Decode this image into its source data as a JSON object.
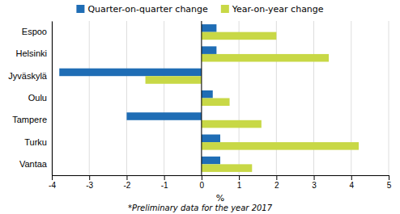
{
  "chart_data": {
    "type": "bar",
    "orientation": "horizontal",
    "categories": [
      "Espoo",
      "Helsinki",
      "Jyväskylä",
      "Oulu",
      "Tampere",
      "Turku",
      "Vantaa"
    ],
    "series": [
      {
        "name": "Quarter-on-quarter change",
        "color": "#1f6db5",
        "values": [
          0.4,
          0.4,
          -3.8,
          0.3,
          -2.0,
          0.5,
          0.5
        ]
      },
      {
        "name": "Year-on-year change",
        "color": "#c8d846",
        "values": [
          2.0,
          3.4,
          -1.5,
          0.75,
          1.6,
          4.2,
          1.35
        ]
      }
    ],
    "xlim": [
      -4,
      5
    ],
    "xticks": [
      -4,
      -3,
      -2,
      -1,
      0,
      1,
      2,
      3,
      4,
      5
    ],
    "xlabel": "%",
    "grid": true,
    "legend": "top",
    "annotations": [
      "*Preliminary data for the year 2017"
    ]
  }
}
